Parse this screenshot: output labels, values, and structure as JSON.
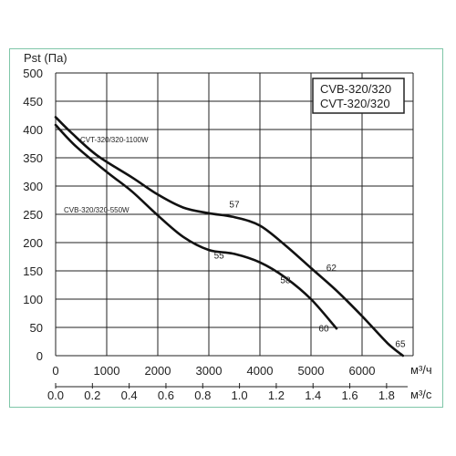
{
  "chart_data": {
    "type": "line",
    "ylabel": "Pst (Па)",
    "xlabel": "м³/ч",
    "xlabel2": "м³/с",
    "xlim": [
      0,
      7000
    ],
    "ylim": [
      0,
      500
    ],
    "yticks": [
      0,
      50,
      100,
      150,
      200,
      250,
      300,
      350,
      400,
      450,
      500
    ],
    "xticks": [
      0,
      1000,
      2000,
      3000,
      4000,
      5000,
      6000
    ],
    "xticks2": [
      "0.0",
      "0.2",
      "0.4",
      "0.6",
      "0.8",
      "1.0",
      "1.2",
      "1.4",
      "1.6",
      "1.8"
    ],
    "grid": true,
    "legend_box": [
      "CVB-320/320",
      "CVT-320/320"
    ],
    "series": [
      {
        "name": "CVT-320/320-1100W",
        "x": [
          0,
          300,
          800,
          1500,
          2000,
          2500,
          3000,
          3500,
          4000,
          4500,
          5000,
          5500,
          6000,
          6500,
          6800
        ],
        "y": [
          422,
          395,
          355,
          315,
          285,
          262,
          252,
          245,
          230,
          195,
          155,
          115,
          70,
          22,
          0
        ]
      },
      {
        "name": "CVB-320/320-550W",
        "x": [
          0,
          400,
          1000,
          1500,
          2000,
          2500,
          3000,
          3500,
          4000,
          4500,
          5000,
          5500
        ],
        "y": [
          408,
          370,
          325,
          290,
          248,
          210,
          187,
          180,
          165,
          138,
          100,
          48
        ]
      }
    ],
    "point_labels": [
      {
        "text": "57",
        "x": 3400,
        "y": 262
      },
      {
        "text": "55",
        "x": 3100,
        "y": 172
      },
      {
        "text": "62",
        "x": 5300,
        "y": 150
      },
      {
        "text": "58",
        "x": 4400,
        "y": 128
      },
      {
        "text": "60",
        "x": 5150,
        "y": 43
      },
      {
        "text": "65",
        "x": 6650,
        "y": 15
      }
    ]
  }
}
